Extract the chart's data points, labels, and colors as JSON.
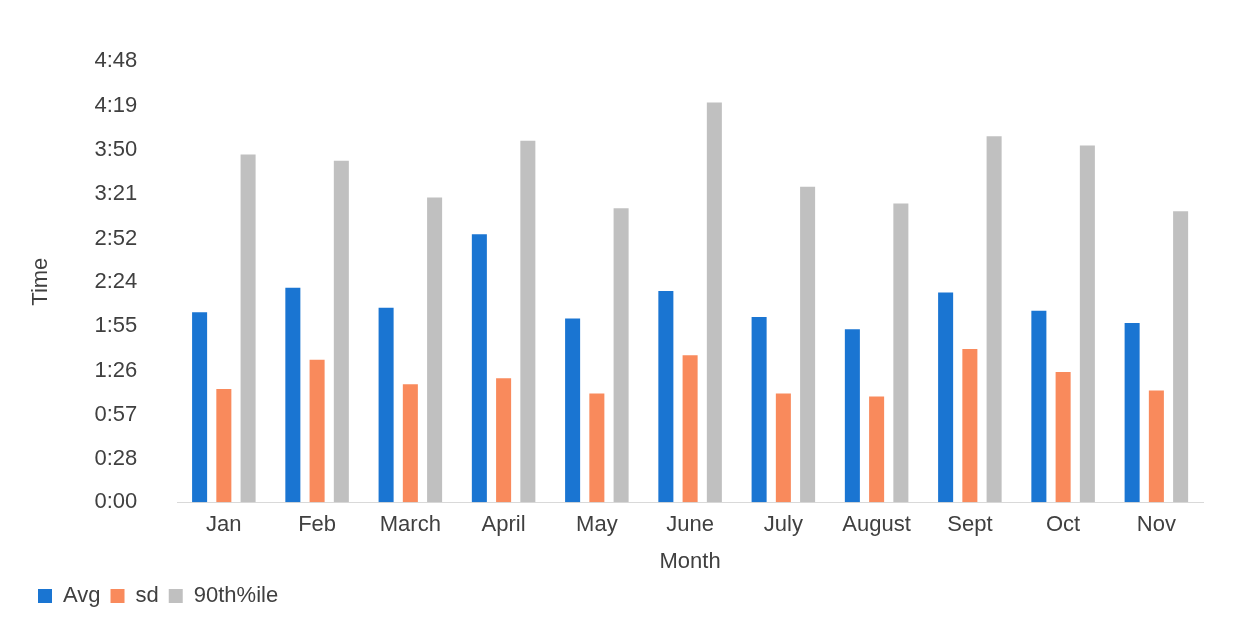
{
  "chart_data": {
    "type": "bar",
    "xlabel": "Month",
    "ylabel": "Time",
    "categories": [
      "Jan",
      "Feb",
      "March",
      "April",
      "May",
      "June",
      "July",
      "August",
      "Sept",
      "Oct",
      "Nov"
    ],
    "series": [
      {
        "name": "Avg",
        "color": "#1a75d2",
        "values": [
          124,
          140,
          127,
          175,
          120,
          138,
          121,
          113,
          137,
          125,
          117
        ]
      },
      {
        "name": "sd",
        "color": "#f98a5c",
        "values": [
          74,
          93,
          77,
          81,
          71,
          96,
          71,
          69,
          100,
          85,
          73
        ]
      },
      {
        "name": "90th%ile",
        "color": "#c0c0c0",
        "values": [
          227,
          223,
          199,
          236,
          192,
          261,
          206,
          195,
          239,
          233,
          190
        ]
      }
    ],
    "ylim": [
      0,
      288
    ],
    "yticks": [
      {
        "value": 0,
        "label": "0:00"
      },
      {
        "value": 28,
        "label": "0:28"
      },
      {
        "value": 57,
        "label": "0:57"
      },
      {
        "value": 86,
        "label": "1:26"
      },
      {
        "value": 115,
        "label": "1:55"
      },
      {
        "value": 144,
        "label": "2:24"
      },
      {
        "value": 172,
        "label": "2:52"
      },
      {
        "value": 201,
        "label": "3:21"
      },
      {
        "value": 230,
        "label": "3:50"
      },
      {
        "value": 259,
        "label": "4:19"
      },
      {
        "value": 288,
        "label": "4:48"
      }
    ],
    "grid": false,
    "legend": "bottom left"
  }
}
